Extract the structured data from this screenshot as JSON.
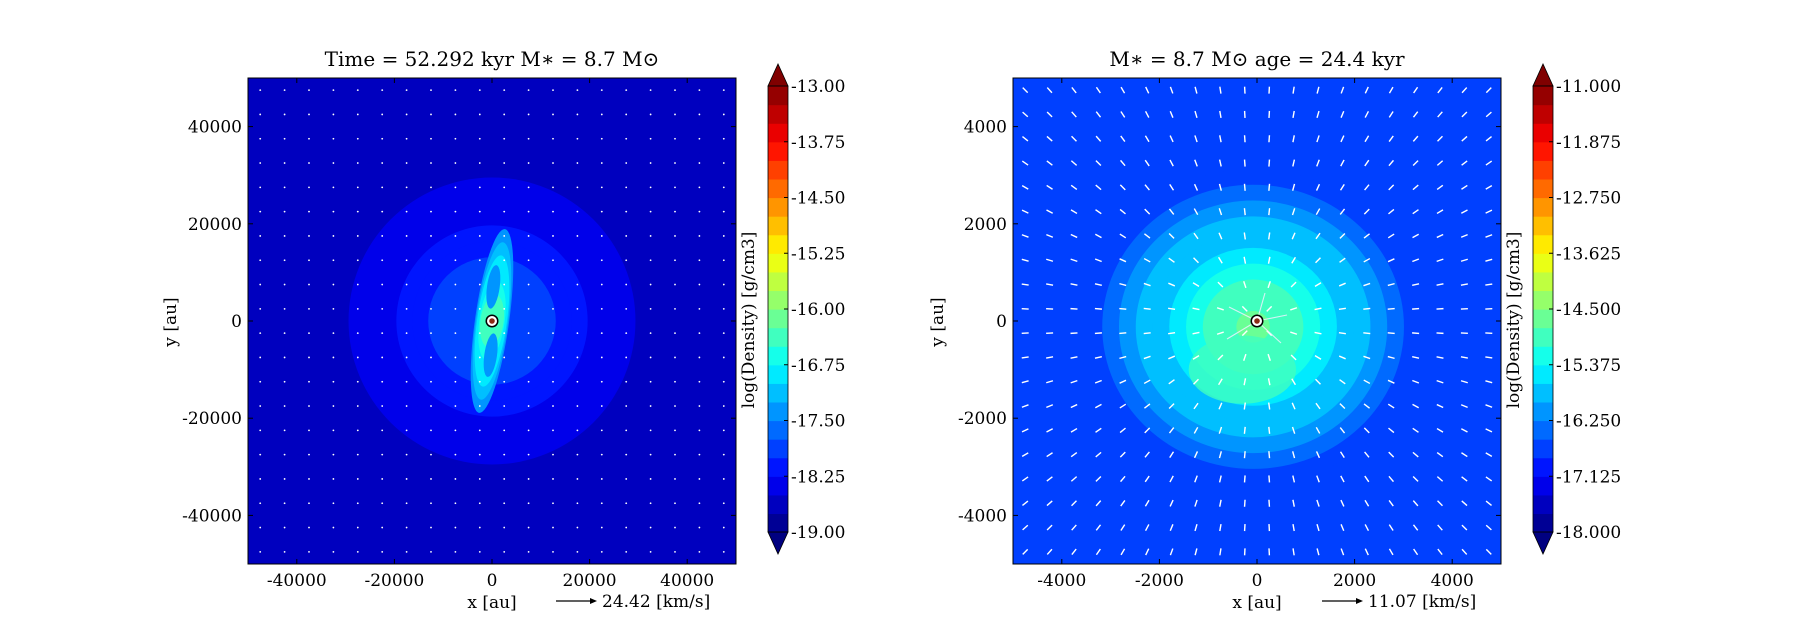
{
  "chart_data": [
    {
      "type": "heatmap",
      "title": "Time = 52.292 kyr    M$_*$ = 8.7 M$_\\odot$",
      "title_text": "Time = 52.292 kyr    M∗ = 8.7 M⊙",
      "xlabel": "x [au]",
      "ylabel": "y [au]",
      "xlim": [
        -50000,
        50000
      ],
      "ylim": [
        -50000,
        50000
      ],
      "xticks": [
        -40000,
        -20000,
        0,
        20000,
        40000
      ],
      "yticks": [
        -40000,
        -20000,
        0,
        20000,
        40000
      ],
      "xtick_labels": [
        "-40000",
        "-20000",
        "0",
        "20000",
        "40000"
      ],
      "ytick_labels": [
        "-40000",
        "-20000",
        "0",
        "20000",
        "40000"
      ],
      "quiver_key": "24.42 [km/s]",
      "colorbar": {
        "label": "log(Density) [g/cm3]",
        "min": -19.0,
        "max": -13.0,
        "ticks": [
          -19.0,
          -18.25,
          -17.5,
          -16.75,
          -16.0,
          -15.25,
          -14.5,
          -13.75,
          -13.0
        ],
        "tick_labels": [
          "-19.00",
          "-18.25",
          "-17.50",
          "-16.75",
          "-16.00",
          "-15.25",
          "-14.50",
          "-13.75",
          "-13.00"
        ],
        "extend": "both",
        "colormap": "jet"
      },
      "field": {
        "background_log_density": -18.6,
        "envelope_peak_log_density": -17.7,
        "envelope_scale_au": 28000,
        "disk_peak_log_density": -16.3,
        "disk_half_length_au": 19000,
        "disk_half_width_au": 3500
      },
      "star": {
        "x": 0,
        "y": 0
      },
      "vectors": {
        "spacing": 5000,
        "style": "dots"
      }
    },
    {
      "type": "heatmap",
      "title": "M$_*$ = 8.7 M$_\\odot$        age = 24.4 kyr",
      "title_text": "M∗ = 8.7 M⊙          age = 24.4 kyr",
      "xlabel": "x [au]",
      "ylabel": "y [au]",
      "xlim": [
        -5000,
        5000
      ],
      "ylim": [
        -5000,
        5000
      ],
      "xticks": [
        -4000,
        -2000,
        0,
        2000,
        4000
      ],
      "yticks": [
        -4000,
        -2000,
        0,
        2000,
        4000
      ],
      "xtick_labels": [
        "-4000",
        "-2000",
        "0",
        "2000",
        "4000"
      ],
      "ytick_labels": [
        "-4000",
        "-2000",
        "0",
        "2000",
        "4000"
      ],
      "quiver_key": "11.07 [km/s]",
      "colorbar": {
        "label": "log(Density) [g/cm3]",
        "min": -18.0,
        "max": -11.0,
        "ticks": [
          -18.0,
          -17.125,
          -16.25,
          -15.375,
          -14.5,
          -13.625,
          -12.75,
          -11.875,
          -11.0
        ],
        "tick_labels": [
          "-18.000",
          "-17.125",
          "-16.250",
          "-15.375",
          "-14.500",
          "-13.625",
          "-12.750",
          "-11.875",
          "-11.000"
        ],
        "extend": "both",
        "colormap": "jet"
      },
      "field": {
        "background_log_density": -16.8,
        "core_peak_log_density": -14.6,
        "core_scale_au": 2300
      },
      "star": {
        "x": 0,
        "y": 0
      },
      "vectors": {
        "spacing": 500,
        "style": "arrows-infall"
      }
    }
  ],
  "colors": {
    "vector": "#ffffff",
    "star_ring": "#ffffff",
    "star_core": "#8b2a14"
  }
}
